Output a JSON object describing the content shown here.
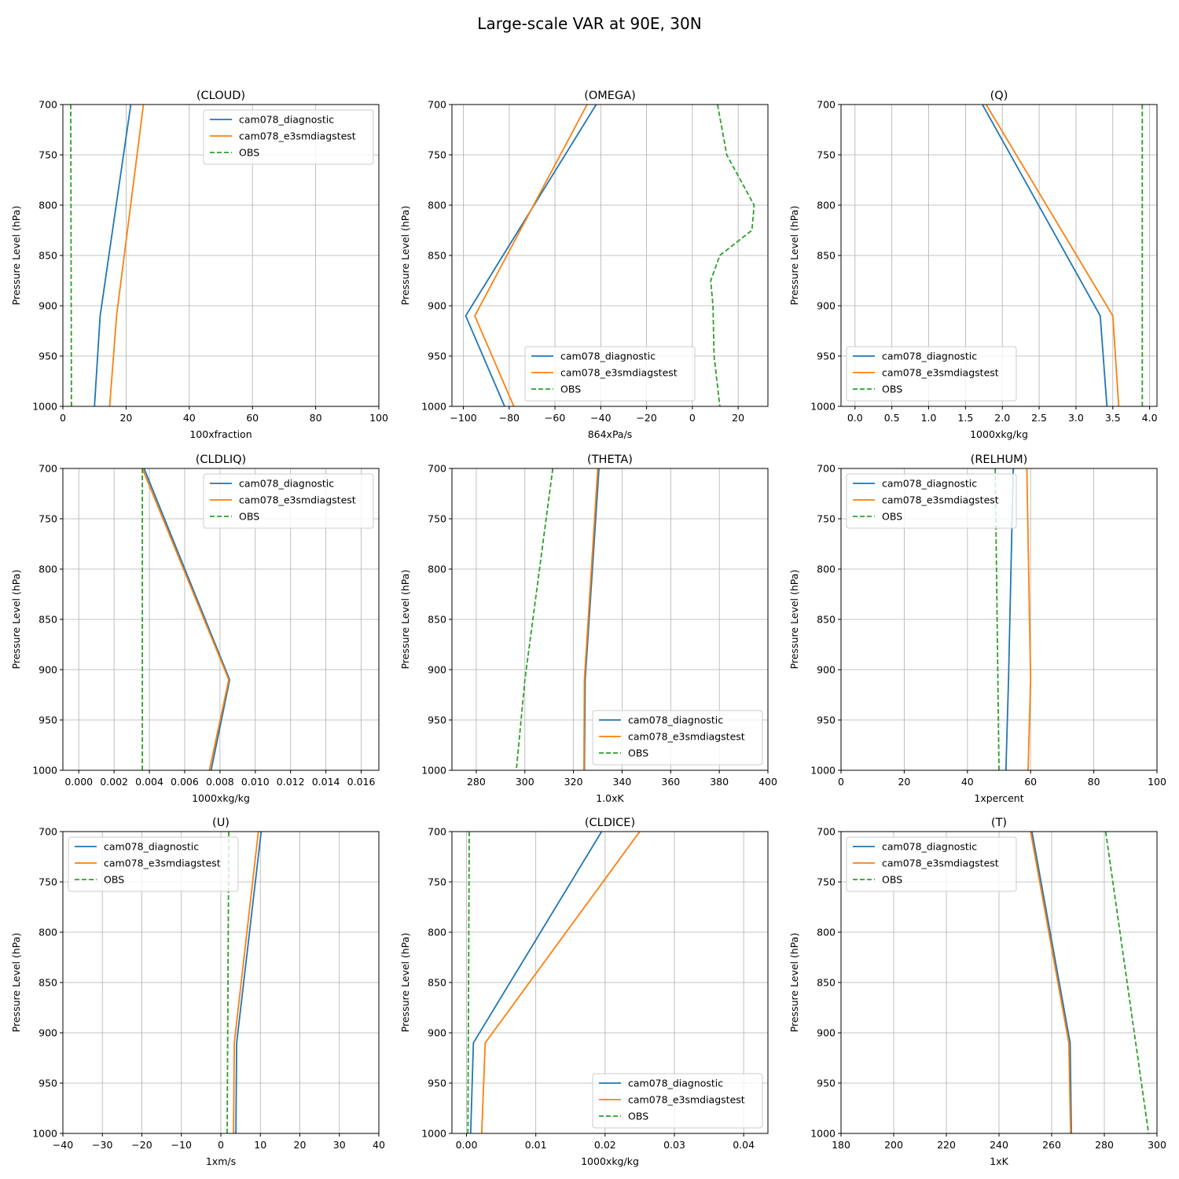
{
  "figure": {
    "suptitle": "Large-scale VAR at 90E, 30N"
  },
  "chart_data": [
    {
      "type": "line",
      "title": "(CLOUD)",
      "xlabel": "100xfraction",
      "ylabel": "Pressure Level (hPa)",
      "xlim": [
        0,
        100
      ],
      "xticks": [
        0,
        20,
        40,
        60,
        80,
        100
      ],
      "xtick_labels": [
        "0",
        "20",
        "40",
        "60",
        "80",
        "100"
      ],
      "ylim": [
        1000,
        700
      ],
      "yticks": [
        700,
        750,
        800,
        850,
        900,
        950,
        1000
      ],
      "ytick_labels": [
        "700",
        "750",
        "800",
        "850",
        "900",
        "950",
        "1000"
      ],
      "grid": true,
      "legend": "upper right",
      "series": [
        {
          "name": "cam078_diagnostic",
          "color": "#1f77b4",
          "dashed": false,
          "y": [
            700,
            910,
            1000
          ],
          "x": [
            21.5,
            11.8,
            10.0
          ]
        },
        {
          "name": "cam078_e3smdiagstest",
          "color": "#ff7f0e",
          "dashed": false,
          "y": [
            700,
            910,
            1000
          ],
          "x": [
            25.5,
            17.0,
            14.8
          ]
        },
        {
          "name": "OBS",
          "color": "#2ca02c",
          "dashed": true,
          "y": [
            700,
            1000
          ],
          "x": [
            2.5,
            2.7
          ]
        }
      ]
    },
    {
      "type": "line",
      "title": "(OMEGA)",
      "xlabel": "864xPa/s",
      "ylabel": "Pressure Level (hPa)",
      "xlim": [
        -105,
        33
      ],
      "xticks": [
        -100,
        -80,
        -60,
        -40,
        -20,
        0,
        20
      ],
      "xtick_labels": [
        "−100",
        "−80",
        "−60",
        "−40",
        "−20",
        "0",
        "20"
      ],
      "ylim": [
        1000,
        700
      ],
      "yticks": [
        700,
        750,
        800,
        850,
        900,
        950,
        1000
      ],
      "ytick_labels": [
        "700",
        "750",
        "800",
        "850",
        "900",
        "950",
        "1000"
      ],
      "grid": true,
      "legend": "lower center",
      "series": [
        {
          "name": "cam078_diagnostic",
          "color": "#1f77b4",
          "dashed": false,
          "y": [
            700,
            910,
            1000
          ],
          "x": [
            -42,
            -99,
            -82
          ]
        },
        {
          "name": "cam078_e3smdiagstest",
          "color": "#ff7f0e",
          "dashed": false,
          "y": [
            700,
            910,
            1000
          ],
          "x": [
            -46,
            -95,
            -78
          ]
        },
        {
          "name": "OBS",
          "color": "#2ca02c",
          "dashed": true,
          "y": [
            700,
            750,
            800,
            825,
            850,
            875,
            900,
            950,
            1000
          ],
          "x": [
            11,
            15,
            27,
            26,
            12,
            8,
            9,
            9.5,
            12
          ]
        }
      ]
    },
    {
      "type": "line",
      "title": "(Q)",
      "xlabel": "1000xkg/kg",
      "ylabel": "Pressure Level (hPa)",
      "xlim": [
        -0.19,
        4.1
      ],
      "xticks": [
        0,
        0.5,
        1,
        1.5,
        2,
        2.5,
        3,
        3.5,
        4
      ],
      "xtick_labels": [
        "0.0",
        "0.5",
        "1.0",
        "1.5",
        "2.0",
        "2.5",
        "3.0",
        "3.5",
        "4.0"
      ],
      "ylim": [
        1000,
        700
      ],
      "yticks": [
        700,
        750,
        800,
        850,
        900,
        950,
        1000
      ],
      "ytick_labels": [
        "700",
        "750",
        "800",
        "850",
        "900",
        "950",
        "1000"
      ],
      "grid": true,
      "legend": "lower left",
      "series": [
        {
          "name": "cam078_diagnostic",
          "color": "#1f77b4",
          "dashed": false,
          "y": [
            700,
            910,
            1000
          ],
          "x": [
            1.73,
            3.33,
            3.42
          ]
        },
        {
          "name": "cam078_e3smdiagstest",
          "color": "#ff7f0e",
          "dashed": false,
          "y": [
            700,
            910,
            1000
          ],
          "x": [
            1.78,
            3.5,
            3.58
          ]
        },
        {
          "name": "OBS",
          "color": "#2ca02c",
          "dashed": true,
          "y": [
            700,
            1000
          ],
          "x": [
            3.9,
            3.9
          ]
        }
      ]
    },
    {
      "type": "line",
      "title": "(CLDLIQ)",
      "xlabel": "1000xkg/kg",
      "ylabel": "Pressure Level (hPa)",
      "xlim": [
        -0.0009,
        0.017
      ],
      "xticks": [
        0,
        0.002,
        0.004,
        0.006,
        0.008,
        0.01,
        0.012,
        0.014,
        0.016
      ],
      "xtick_labels": [
        "0.000",
        "0.002",
        "0.004",
        "0.006",
        "0.008",
        "0.010",
        "0.012",
        "0.014",
        "0.016"
      ],
      "ylim": [
        1000,
        700
      ],
      "yticks": [
        700,
        750,
        800,
        850,
        900,
        950,
        1000
      ],
      "ytick_labels": [
        "700",
        "750",
        "800",
        "850",
        "900",
        "950",
        "1000"
      ],
      "grid": true,
      "legend": "upper right",
      "series": [
        {
          "name": "cam078_diagnostic",
          "color": "#1f77b4",
          "dashed": false,
          "y": [
            700,
            910,
            1000
          ],
          "x": [
            0.0037,
            0.00855,
            0.0075
          ]
        },
        {
          "name": "cam078_e3smdiagstest",
          "color": "#ff7f0e",
          "dashed": false,
          "y": [
            700,
            910,
            1000
          ],
          "x": [
            0.0036,
            0.0085,
            0.0074
          ]
        },
        {
          "name": "OBS",
          "color": "#2ca02c",
          "dashed": true,
          "y": [
            700,
            1000
          ],
          "x": [
            0.0036,
            0.0036
          ]
        }
      ]
    },
    {
      "type": "line",
      "title": "(THETA)",
      "xlabel": "1.0xK",
      "ylabel": "Pressure Level (hPa)",
      "xlim": [
        270,
        400
      ],
      "xticks": [
        280,
        300,
        320,
        340,
        360,
        380,
        400
      ],
      "xtick_labels": [
        "280",
        "300",
        "320",
        "340",
        "360",
        "380",
        "400"
      ],
      "ylim": [
        1000,
        700
      ],
      "yticks": [
        700,
        750,
        800,
        850,
        900,
        950,
        1000
      ],
      "ytick_labels": [
        "700",
        "750",
        "800",
        "850",
        "900",
        "950",
        "1000"
      ],
      "grid": true,
      "legend": "lower right",
      "series": [
        {
          "name": "cam078_diagnostic",
          "color": "#1f77b4",
          "dashed": false,
          "y": [
            700,
            910,
            1000
          ],
          "x": [
            330.5,
            324.8,
            324.5
          ]
        },
        {
          "name": "cam078_e3smdiagstest",
          "color": "#ff7f0e",
          "dashed": false,
          "y": [
            700,
            910,
            1000
          ],
          "x": [
            330,
            324.5,
            324.3
          ]
        },
        {
          "name": "OBS",
          "color": "#2ca02c",
          "dashed": true,
          "y": [
            700,
            910,
            1000
          ],
          "x": [
            311.5,
            300,
            296.5
          ]
        }
      ]
    },
    {
      "type": "line",
      "title": "(RELHUM)",
      "xlabel": "1xpercent",
      "ylabel": "Pressure Level (hPa)",
      "xlim": [
        0,
        100
      ],
      "xticks": [
        0,
        20,
        40,
        60,
        80,
        100
      ],
      "xtick_labels": [
        "0",
        "20",
        "40",
        "60",
        "80",
        "100"
      ],
      "ylim": [
        1000,
        700
      ],
      "yticks": [
        700,
        750,
        800,
        850,
        900,
        950,
        1000
      ],
      "ytick_labels": [
        "700",
        "750",
        "800",
        "850",
        "900",
        "950",
        "1000"
      ],
      "grid": true,
      "legend": "upper left",
      "series": [
        {
          "name": "cam078_diagnostic",
          "color": "#1f77b4",
          "dashed": false,
          "y": [
            700,
            910,
            1000
          ],
          "x": [
            54.5,
            53.0,
            52.2
          ]
        },
        {
          "name": "cam078_e3smdiagstest",
          "color": "#ff7f0e",
          "dashed": false,
          "y": [
            700,
            910,
            1000
          ],
          "x": [
            58.8,
            60.0,
            59.2
          ]
        },
        {
          "name": "OBS",
          "color": "#2ca02c",
          "dashed": true,
          "y": [
            700,
            1000
          ],
          "x": [
            48.8,
            50.0
          ]
        }
      ]
    },
    {
      "type": "line",
      "title": "(U)",
      "xlabel": "1xm/s",
      "ylabel": "Pressure Level (hPa)",
      "xlim": [
        -40,
        40
      ],
      "xticks": [
        -40,
        -30,
        -20,
        -10,
        0,
        10,
        20,
        30,
        40
      ],
      "xtick_labels": [
        "−40",
        "−30",
        "−20",
        "−10",
        "0",
        "10",
        "20",
        "30",
        "40"
      ],
      "ylim": [
        1000,
        700
      ],
      "yticks": [
        700,
        750,
        800,
        850,
        900,
        950,
        1000
      ],
      "ytick_labels": [
        "700",
        "750",
        "800",
        "850",
        "900",
        "950",
        "1000"
      ],
      "grid": true,
      "legend": "upper left",
      "series": [
        {
          "name": "cam078_diagnostic",
          "color": "#1f77b4",
          "dashed": false,
          "y": [
            700,
            910,
            1000
          ],
          "x": [
            10.2,
            4.0,
            3.8
          ]
        },
        {
          "name": "cam078_e3smdiagstest",
          "color": "#ff7f0e",
          "dashed": false,
          "y": [
            700,
            910,
            1000
          ],
          "x": [
            9.5,
            3.4,
            3.2
          ]
        },
        {
          "name": "OBS",
          "color": "#2ca02c",
          "dashed": true,
          "y": [
            700,
            1000
          ],
          "x": [
            2.0,
            1.6
          ]
        }
      ]
    },
    {
      "type": "line",
      "title": "(CLDICE)",
      "xlabel": "1000xkg/kg",
      "ylabel": "Pressure Level (hPa)",
      "xlim": [
        -0.0021,
        0.0435
      ],
      "xticks": [
        0,
        0.01,
        0.02,
        0.03,
        0.04
      ],
      "xtick_labels": [
        "0.00",
        "0.01",
        "0.02",
        "0.03",
        "0.04"
      ],
      "ylim": [
        1000,
        700
      ],
      "yticks": [
        700,
        750,
        800,
        850,
        900,
        950,
        1000
      ],
      "ytick_labels": [
        "700",
        "750",
        "800",
        "850",
        "900",
        "950",
        "1000"
      ],
      "grid": true,
      "legend": "lower right",
      "series": [
        {
          "name": "cam078_diagnostic",
          "color": "#1f77b4",
          "dashed": false,
          "y": [
            700,
            910,
            1000
          ],
          "x": [
            0.0195,
            0.001,
            0.0006
          ]
        },
        {
          "name": "cam078_e3smdiagstest",
          "color": "#ff7f0e",
          "dashed": false,
          "y": [
            700,
            910,
            1000
          ],
          "x": [
            0.025,
            0.0027,
            0.0022
          ]
        },
        {
          "name": "OBS",
          "color": "#2ca02c",
          "dashed": true,
          "y": [
            700,
            1000
          ],
          "x": [
            0.0004,
            0.0002
          ]
        }
      ]
    },
    {
      "type": "line",
      "title": "(T)",
      "xlabel": "1xK",
      "ylabel": "Pressure Level (hPa)",
      "xlim": [
        180,
        300
      ],
      "xticks": [
        180,
        200,
        220,
        240,
        260,
        280,
        300
      ],
      "xtick_labels": [
        "180",
        "200",
        "220",
        "240",
        "260",
        "280",
        "300"
      ],
      "ylim": [
        1000,
        700
      ],
      "yticks": [
        700,
        750,
        800,
        850,
        900,
        950,
        1000
      ],
      "ytick_labels": [
        "700",
        "750",
        "800",
        "850",
        "900",
        "950",
        "1000"
      ],
      "grid": true,
      "legend": "upper left",
      "series": [
        {
          "name": "cam078_diagnostic",
          "color": "#1f77b4",
          "dashed": false,
          "y": [
            700,
            910,
            1000
          ],
          "x": [
            252.5,
            267.0,
            267.5
          ]
        },
        {
          "name": "cam078_e3smdiagstest",
          "color": "#ff7f0e",
          "dashed": false,
          "y": [
            700,
            910,
            1000
          ],
          "x": [
            252.0,
            266.5,
            267.2
          ]
        },
        {
          "name": "OBS",
          "color": "#2ca02c",
          "dashed": true,
          "y": [
            700,
            1000
          ],
          "x": [
            280.5,
            296.8
          ]
        }
      ]
    }
  ]
}
